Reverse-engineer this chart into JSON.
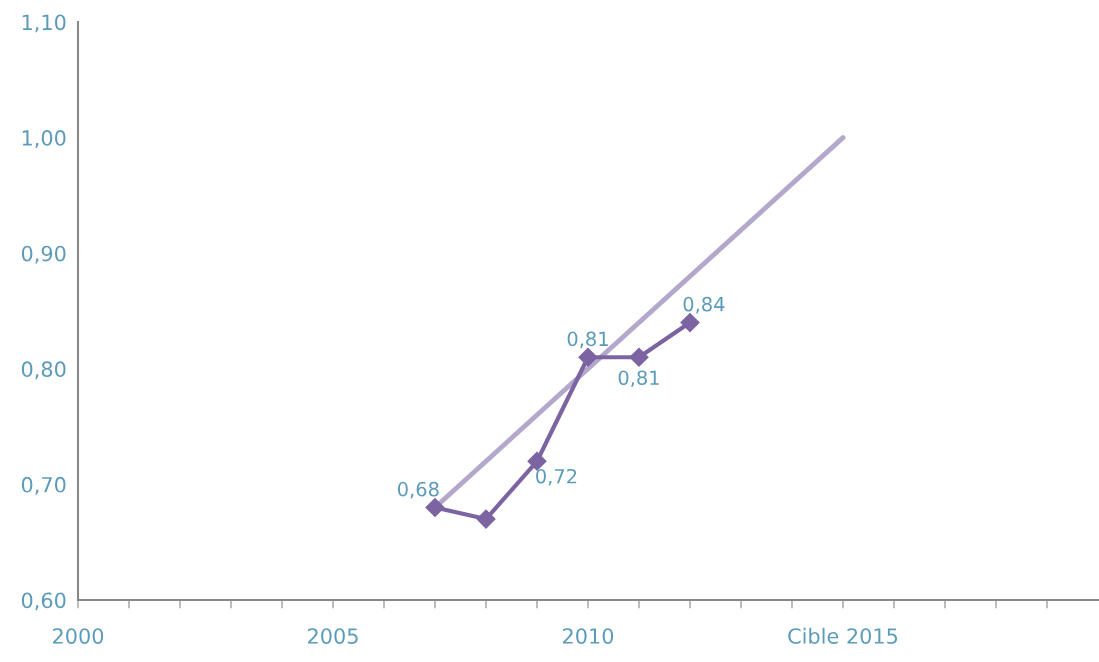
{
  "chart_data": {
    "type": "line",
    "x": [
      2007,
      2008,
      2009,
      2010,
      2011,
      2012
    ],
    "series": [
      {
        "color": "#b3a8cb",
        "x": [
          2007,
          2015
        ],
        "values": [
          0.68,
          1.0
        ],
        "marker": "none"
      },
      {
        "color": "#7c64a2",
        "values": [
          0.68,
          0.67,
          0.72,
          0.81,
          0.81,
          0.84
        ],
        "marker": "diamond",
        "value_labels": [
          "0,68",
          null,
          "0,72",
          "0,81",
          "0,81",
          "0,84"
        ]
      }
    ],
    "xlim": [
      2000,
      2020
    ],
    "xticks": [
      {
        "value": 2000,
        "label": "2000"
      },
      {
        "value": 2001,
        "label": null
      },
      {
        "value": 2002,
        "label": null
      },
      {
        "value": 2003,
        "label": null
      },
      {
        "value": 2004,
        "label": null
      },
      {
        "value": 2005,
        "label": "2005"
      },
      {
        "value": 2006,
        "label": null
      },
      {
        "value": 2007,
        "label": null
      },
      {
        "value": 2008,
        "label": null
      },
      {
        "value": 2009,
        "label": null
      },
      {
        "value": 2010,
        "label": "2010"
      },
      {
        "value": 2011,
        "label": null
      },
      {
        "value": 2012,
        "label": null
      },
      {
        "value": 2013,
        "label": null
      },
      {
        "value": 2014,
        "label": null
      },
      {
        "value": 2015,
        "label": "Cible 2015"
      },
      {
        "value": 2016,
        "label": null
      },
      {
        "value": 2017,
        "label": null
      },
      {
        "value": 2018,
        "label": null
      },
      {
        "value": 2019,
        "label": null
      }
    ],
    "ylim": [
      0.6,
      1.1
    ],
    "yticks": [
      {
        "value": 0.6,
        "label": "0,60"
      },
      {
        "value": 0.7,
        "label": "0,70"
      },
      {
        "value": 0.8,
        "label": "0,80"
      },
      {
        "value": 0.9,
        "label": "0,90"
      },
      {
        "value": 1.0,
        "label": "1,00"
      },
      {
        "value": 1.1,
        "label": "1,10"
      }
    ],
    "grid": false,
    "legend": false,
    "line_style": "solid"
  }
}
